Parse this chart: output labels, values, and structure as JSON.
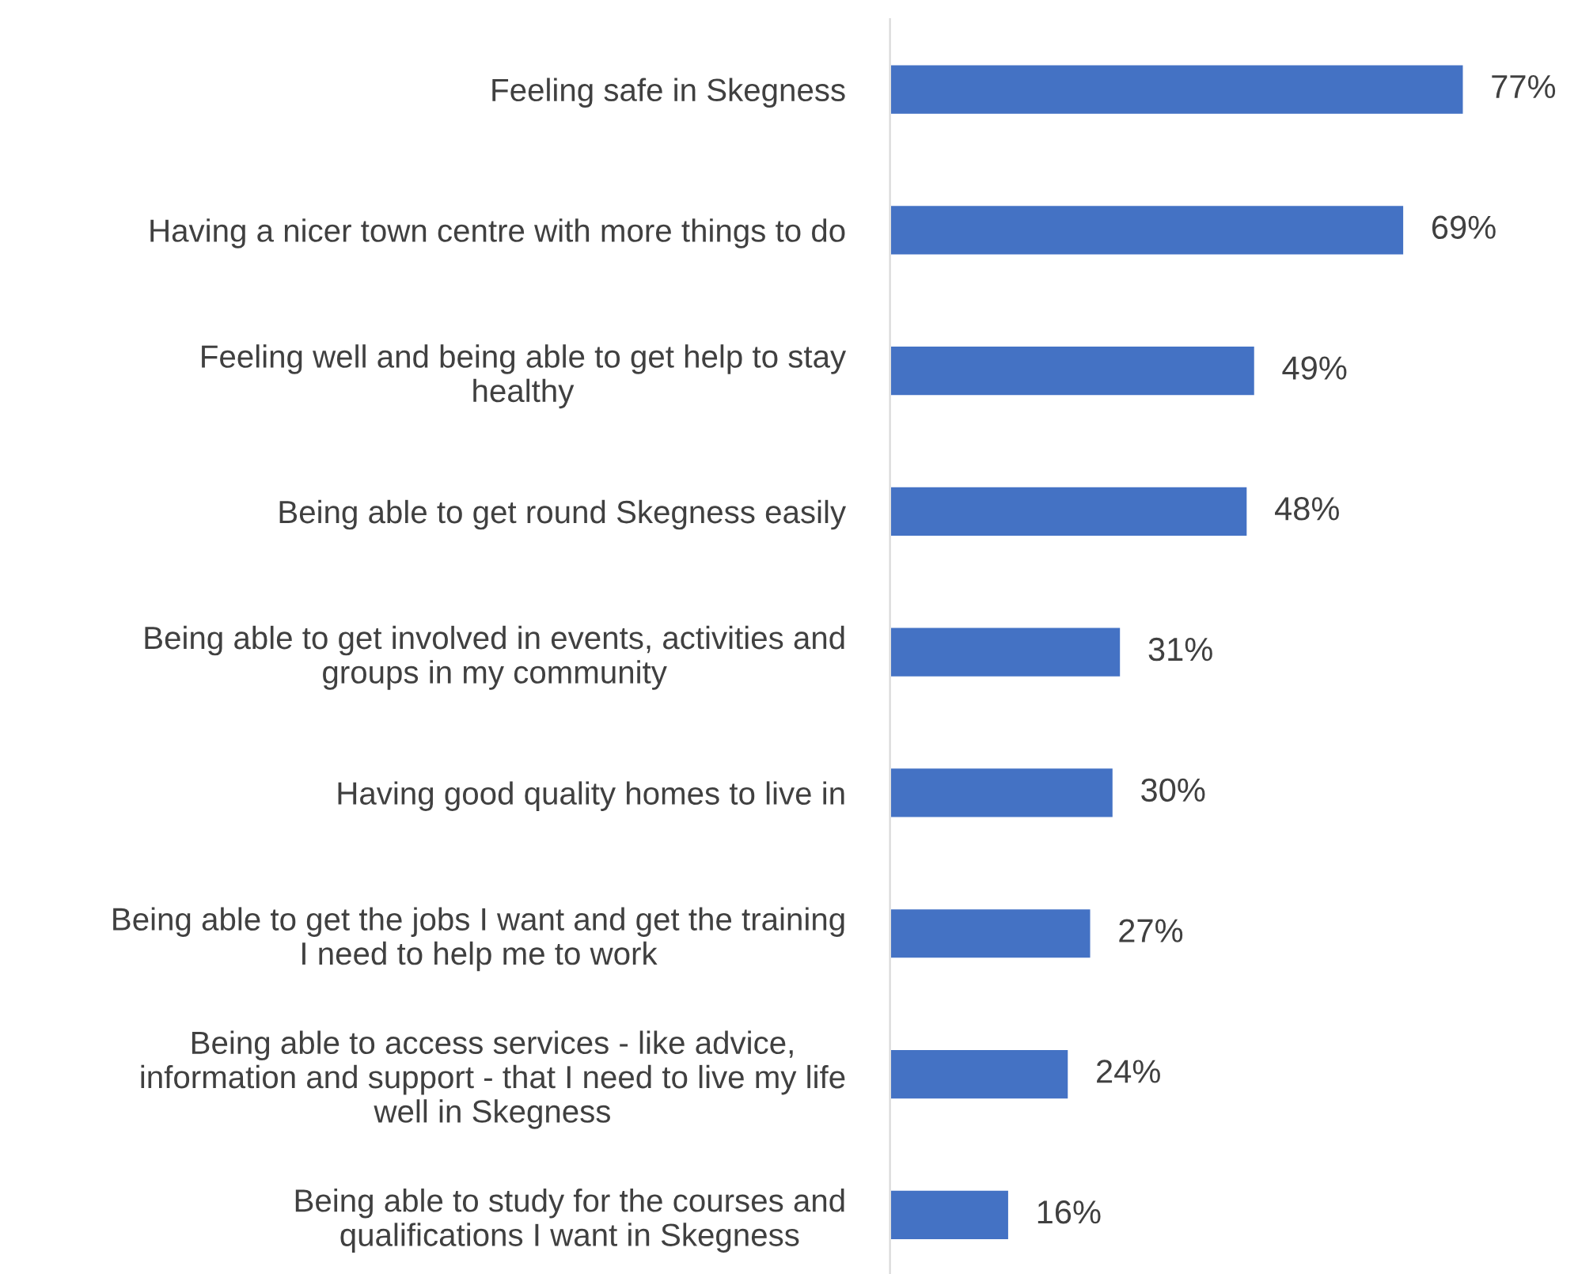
{
  "chart_data": {
    "type": "bar",
    "orientation": "horizontal",
    "categories": [
      "Feeling safe in Skegness",
      "Having a nicer town centre with more things to do",
      "Feeling well and being able to get help to stay\nhealthy",
      "Being able to get round Skegness easily",
      "Being able to get involved in events, activities and\ngroups in my community",
      "Having good quality homes to live in",
      "Being able to get the jobs I want and get the training\nI need to help me to work",
      "Being able to access services - like advice,\ninformation and support - that I need to live my life\nwell in Skegness",
      "Being able to study for the courses and\nqualifications I want in Skegness"
    ],
    "values": [
      77,
      69,
      49,
      48,
      31,
      30,
      27,
      24,
      16
    ],
    "value_labels": [
      "77%",
      "69%",
      "49%",
      "48%",
      "31%",
      "30%",
      "27%",
      "24%",
      "16%"
    ],
    "color": "#4472c4",
    "grid": false,
    "legend": false
  }
}
